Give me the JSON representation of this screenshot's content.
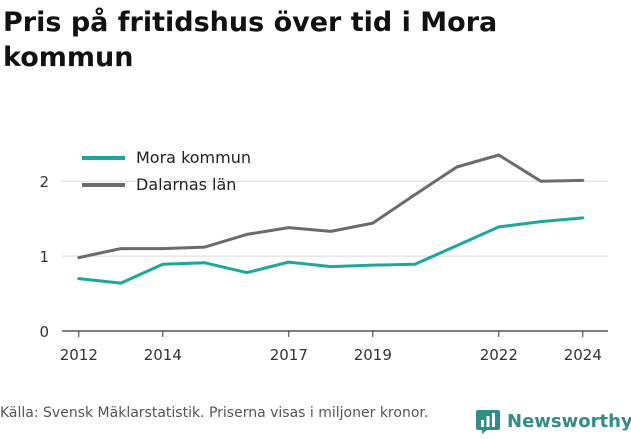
{
  "title": "Pris på fritidshus över tid i Mora kommun",
  "footer": {
    "source": "Källa: Svensk Mäklarstatistik. Priserna visas i miljoner kronor."
  },
  "brand": {
    "name": "Newsworthy",
    "icon": "chart-bubble-icon",
    "color": "#2f8f86"
  },
  "chart_data": {
    "type": "line",
    "title": "Pris på fritidshus över tid i Mora kommun",
    "x": [
      2012,
      2013,
      2014,
      2015,
      2016,
      2017,
      2018,
      2019,
      2020,
      2021,
      2022,
      2023,
      2024
    ],
    "x_ticks": [
      2012,
      2014,
      2017,
      2019,
      2022,
      2024
    ],
    "y_ticks": [
      0,
      1,
      2
    ],
    "ylim": [
      0,
      2.55
    ],
    "xlim": [
      2011.6,
      2024.6
    ],
    "grid": true,
    "legend_position": "top-left",
    "series": [
      {
        "name": "Mora kommun",
        "color": "#17a99d",
        "values": [
          0.7,
          0.64,
          0.89,
          0.91,
          0.78,
          0.92,
          0.86,
          0.88,
          0.89,
          1.14,
          1.39,
          1.46,
          1.51
        ]
      },
      {
        "name": "Dalarnas län",
        "color": "#6b6b6b",
        "values": [
          0.98,
          1.1,
          1.1,
          1.12,
          1.29,
          1.38,
          1.33,
          1.44,
          1.82,
          2.19,
          2.35,
          2.0,
          2.01
        ]
      }
    ]
  }
}
